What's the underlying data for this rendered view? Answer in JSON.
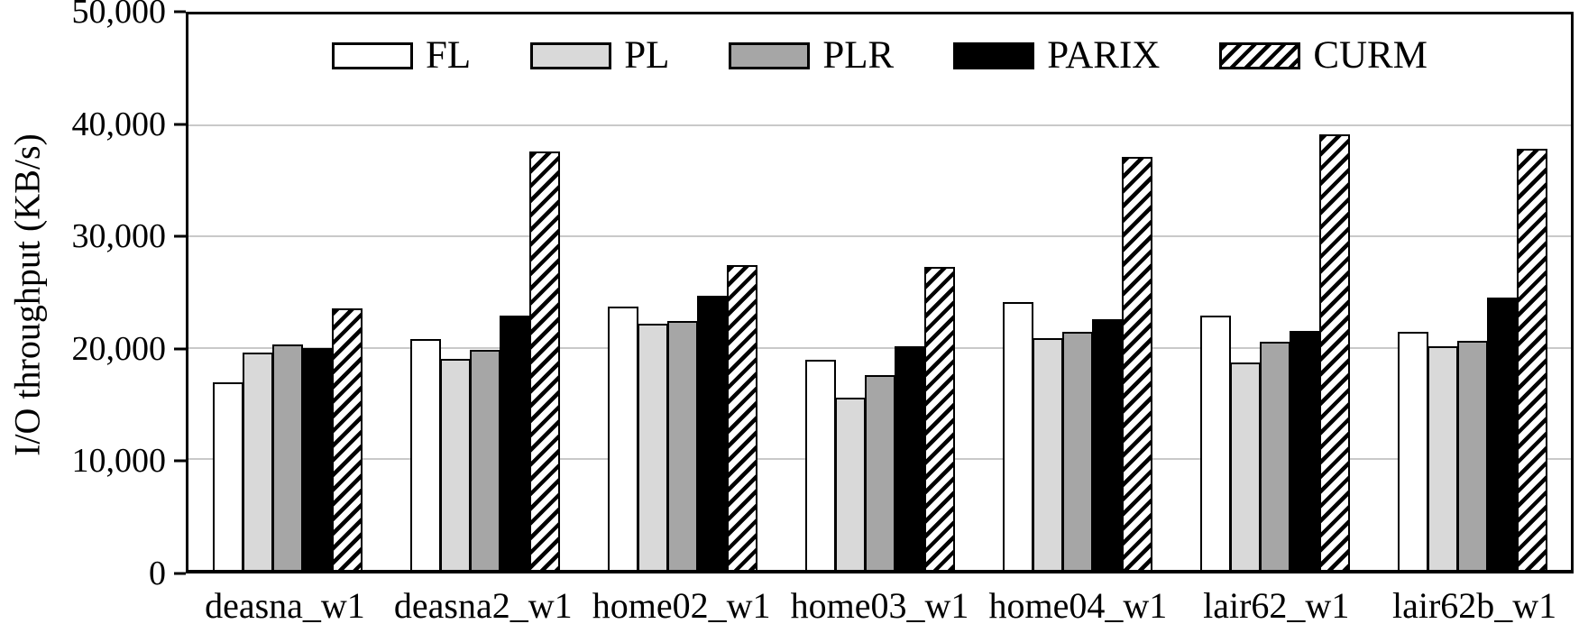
{
  "figure": {
    "background": "#ffffff"
  },
  "chart_data": {
    "type": "bar",
    "title": "",
    "xlabel": "",
    "ylabel": "I/O throughput (KB/s)",
    "ylim": [
      0,
      50000
    ],
    "yticks": [
      0,
      10000,
      20000,
      30000,
      40000,
      50000
    ],
    "ytick_labels": [
      "0",
      "10,000",
      "20,000",
      "30,000",
      "40,000",
      "50,000"
    ],
    "grid": "horizontal",
    "legend_position": "top-center-inside",
    "categories": [
      "deasna_w1",
      "deasna2_w1",
      "home02_w1",
      "home03_w1",
      "home04_w1",
      "lair62_w1",
      "lair62b_w1"
    ],
    "series": [
      {
        "name": "FL",
        "fill": "#ffffff",
        "pattern": "solid",
        "values": [
          16900,
          20800,
          23700,
          18900,
          24100,
          22900,
          21400
        ]
      },
      {
        "name": "PL",
        "fill": "#d9d9d9",
        "pattern": "solid",
        "values": [
          19600,
          19000,
          22200,
          15500,
          20900,
          18700,
          20100
        ]
      },
      {
        "name": "PLR",
        "fill": "#a6a6a6",
        "pattern": "solid",
        "values": [
          20300,
          19800,
          22400,
          17500,
          21400,
          20500,
          20600
        ]
      },
      {
        "name": "PARIX",
        "fill": "#000000",
        "pattern": "solid",
        "values": [
          20000,
          22900,
          24700,
          20100,
          22600,
          21500,
          24500
        ]
      },
      {
        "name": "CURM",
        "fill": "#ffffff",
        "pattern": "diagonal-hatch",
        "values": [
          23500,
          37700,
          27400,
          27300,
          37200,
          39200,
          37900
        ]
      }
    ],
    "colors": {
      "axis": "#000000",
      "grid": "#c9c9c9",
      "hatch": "#000000"
    }
  }
}
